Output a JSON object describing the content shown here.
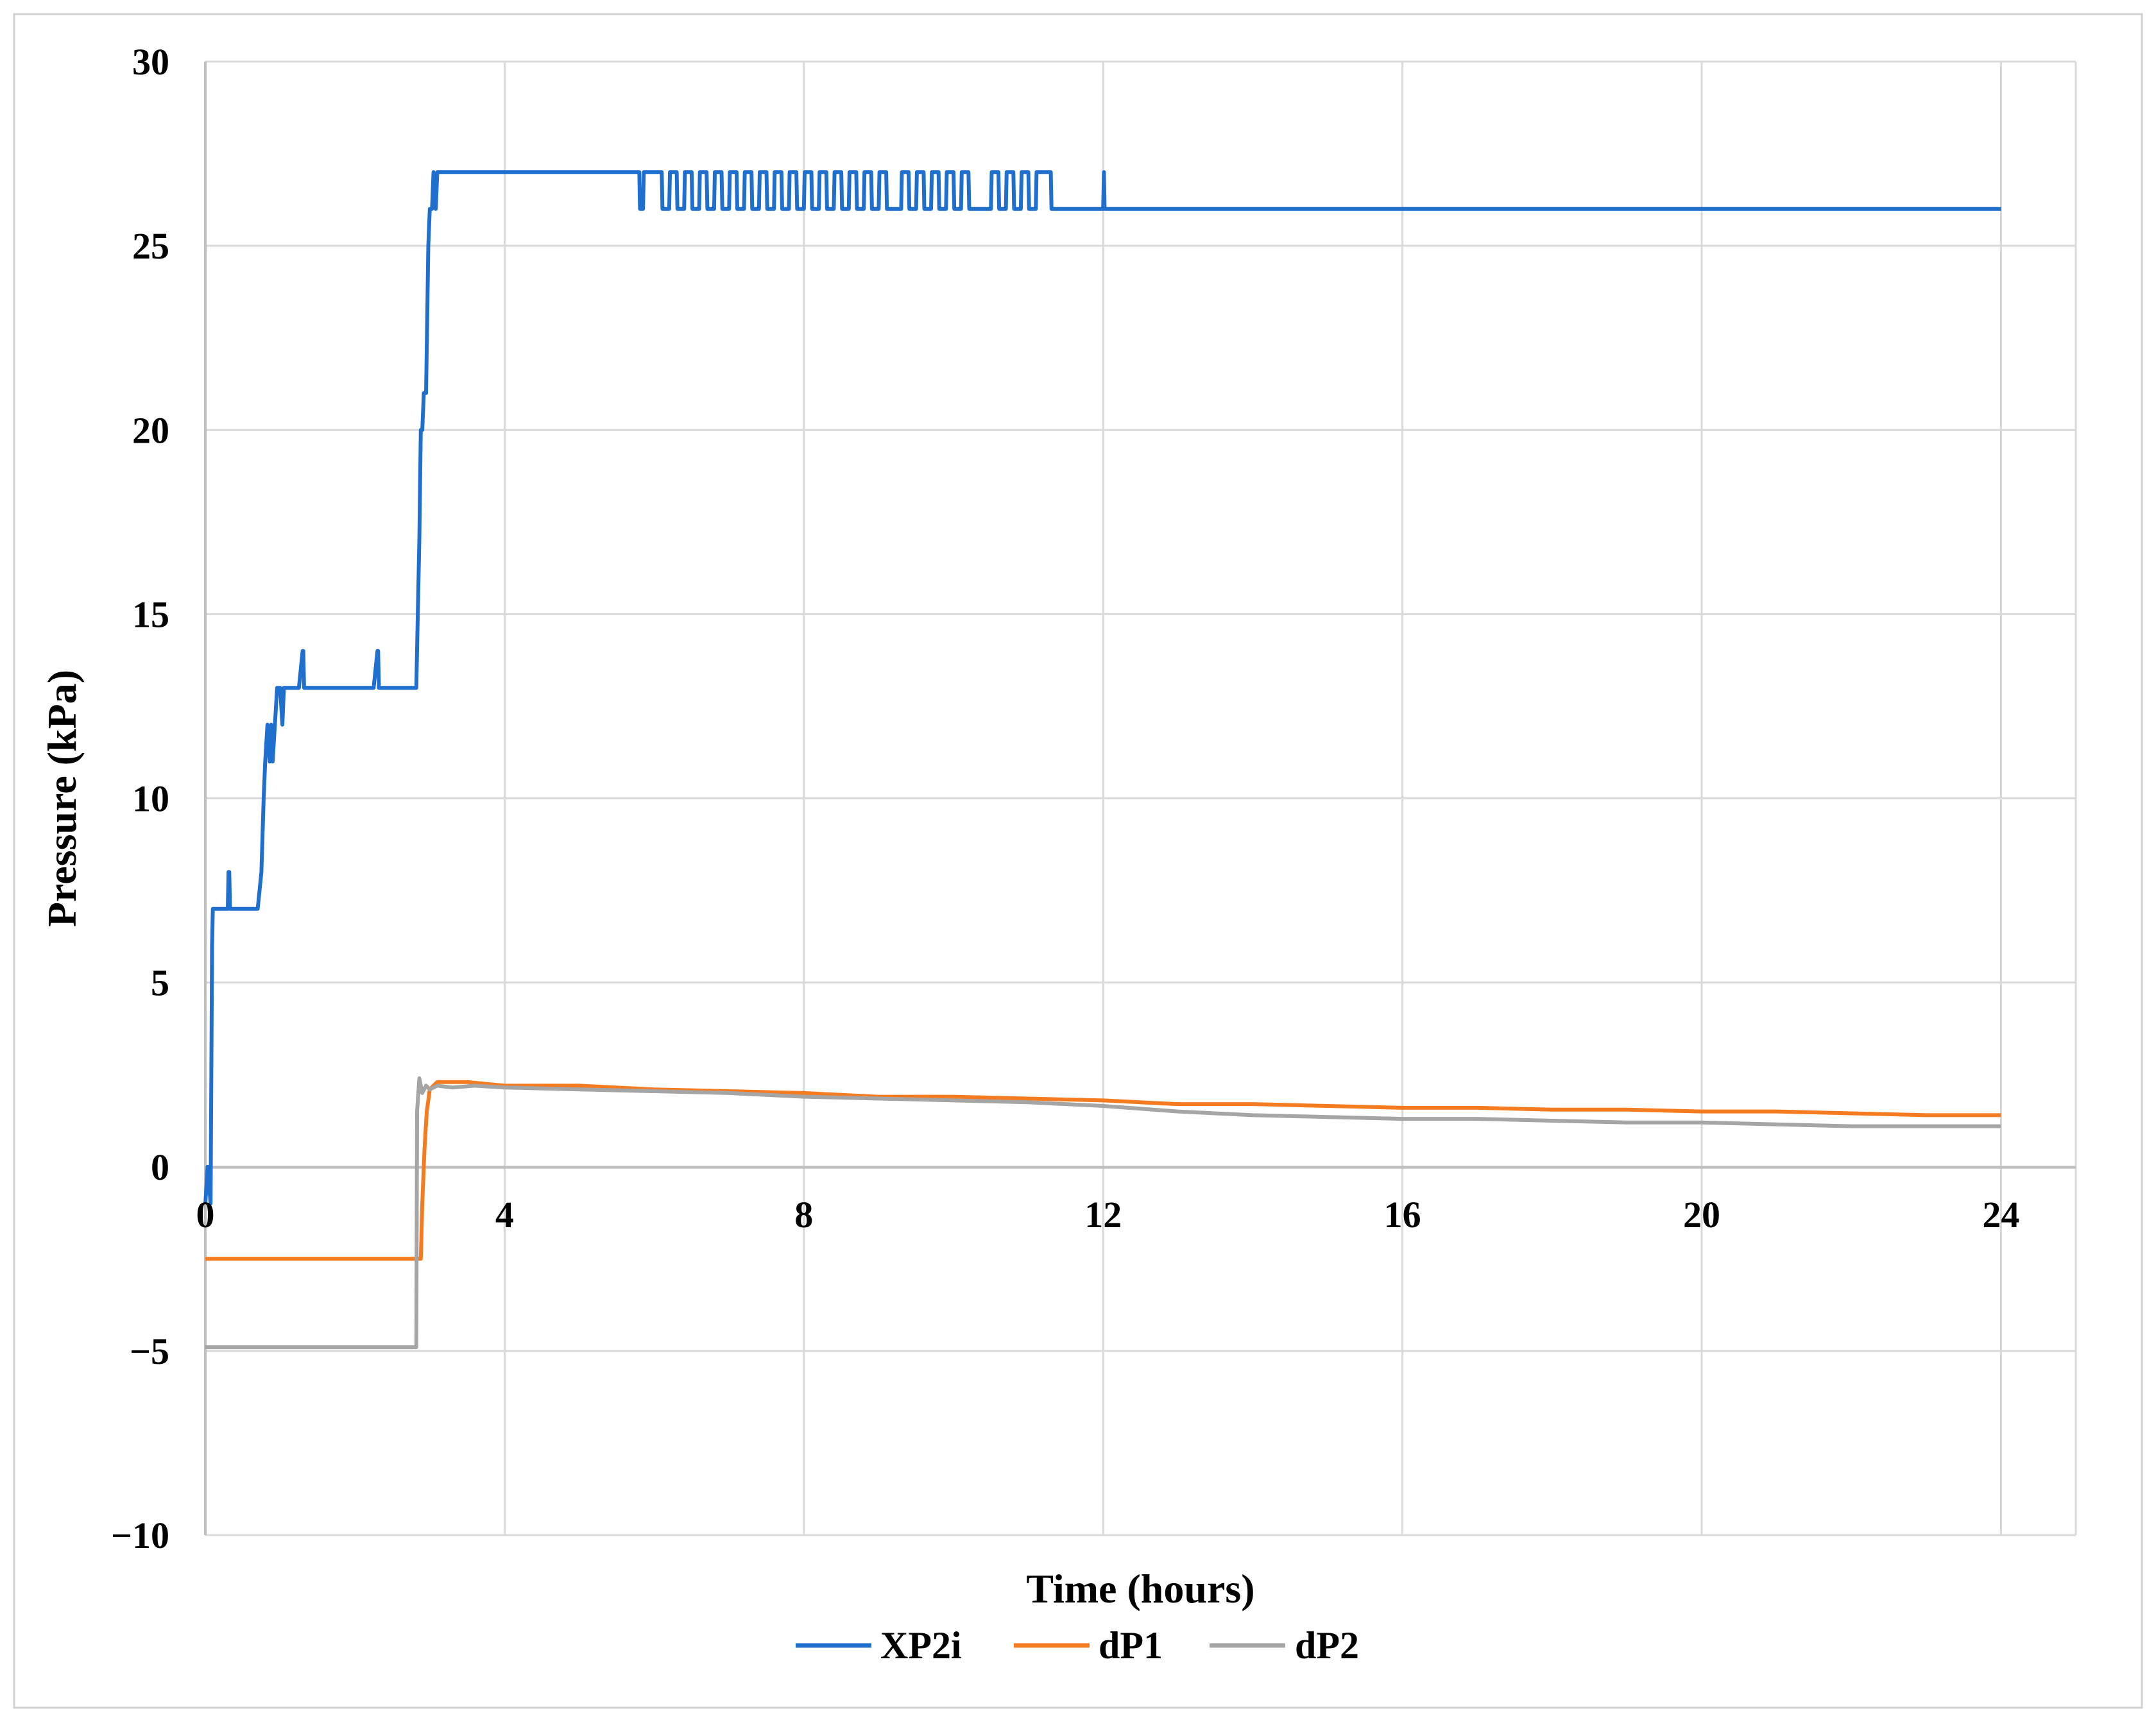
{
  "chart_data": {
    "type": "line",
    "title": "",
    "xlabel": "Time (hours)",
    "ylabel": "Pressure (kPa)",
    "xlim": [
      0,
      25
    ],
    "ylim": [
      -10,
      30
    ],
    "x_ticks": [
      0,
      4,
      8,
      12,
      16,
      20,
      24
    ],
    "y_ticks": [
      -10,
      -5,
      0,
      5,
      10,
      15,
      20,
      25,
      30
    ],
    "x_tick_labels": [
      "0",
      "4",
      "8",
      "12",
      "16",
      "20",
      "24"
    ],
    "y_tick_labels": [
      "−10",
      "−5",
      "0",
      "5",
      "10",
      "15",
      "20",
      "25",
      "30"
    ],
    "grid": true,
    "legend_position": "bottom",
    "series": [
      {
        "name": "XP2i",
        "color": "#1f6fce",
        "x": [
          0,
          0.03,
          0.07,
          0.09,
          0.1,
          0.12,
          0.3,
          0.31,
          0.32,
          0.33,
          0.7,
          0.75,
          0.78,
          0.8,
          0.83,
          0.86,
          0.88,
          0.9,
          0.93,
          0.96,
          1.0,
          1.03,
          1.05,
          1.07,
          1.1,
          1.25,
          1.3,
          1.31,
          1.32,
          2.25,
          2.3,
          2.31,
          2.32,
          2.82,
          2.84,
          2.86,
          2.88,
          2.9,
          2.92,
          2.95,
          2.98,
          3.0,
          3.03,
          3.05,
          3.08,
          3.1,
          3.5,
          5.8,
          5.81,
          5.85,
          5.86,
          6.1,
          6.11,
          6.2,
          6.21,
          6.3,
          6.31,
          6.4,
          6.41,
          6.5,
          6.51,
          6.6,
          6.61,
          6.7,
          6.71,
          6.8,
          6.81,
          6.9,
          6.91,
          7.0,
          7.01,
          7.1,
          7.11,
          7.2,
          7.21,
          7.3,
          7.31,
          7.4,
          7.41,
          7.5,
          7.51,
          7.6,
          7.61,
          7.7,
          7.71,
          7.8,
          7.81,
          7.9,
          7.91,
          8.0,
          8.01,
          8.1,
          8.11,
          8.2,
          8.21,
          8.3,
          8.31,
          8.4,
          8.41,
          8.5,
          8.51,
          8.6,
          8.61,
          8.7,
          8.71,
          8.8,
          8.81,
          8.9,
          8.91,
          9.0,
          9.01,
          9.1,
          9.11,
          9.3,
          9.31,
          9.4,
          9.41,
          9.5,
          9.51,
          9.6,
          9.61,
          9.7,
          9.71,
          9.8,
          9.81,
          9.9,
          9.91,
          10.0,
          10.01,
          10.1,
          10.11,
          10.2,
          10.21,
          10.5,
          10.51,
          10.6,
          10.61,
          10.7,
          10.71,
          10.8,
          10.81,
          10.9,
          10.91,
          11.0,
          11.01,
          11.1,
          11.11,
          11.3,
          11.31,
          12.0,
          12.01,
          12.02,
          24.0
        ],
        "values": [
          -1,
          0,
          -1,
          6,
          7,
          7,
          7,
          8,
          8,
          7,
          7,
          8,
          10,
          11,
          12,
          11,
          12,
          11,
          12,
          13,
          13,
          12,
          13,
          13,
          13,
          13,
          14,
          14,
          13,
          13,
          14,
          14,
          13,
          13,
          15,
          17,
          20,
          20,
          21,
          21,
          25,
          26,
          26,
          27,
          26,
          27,
          27,
          27,
          26,
          26,
          27,
          27,
          26,
          26,
          27,
          27,
          26,
          26,
          27,
          27,
          26,
          26,
          27,
          27,
          26,
          26,
          27,
          27,
          26,
          26,
          27,
          27,
          26,
          26,
          27,
          27,
          26,
          26,
          27,
          27,
          26,
          26,
          27,
          27,
          26,
          26,
          27,
          27,
          26,
          26,
          27,
          27,
          26,
          26,
          27,
          27,
          26,
          26,
          27,
          27,
          26,
          26,
          27,
          27,
          26,
          26,
          27,
          27,
          26,
          26,
          27,
          27,
          26,
          26,
          27,
          27,
          26,
          26,
          27,
          27,
          26,
          26,
          27,
          27,
          26,
          26,
          27,
          27,
          26,
          26,
          27,
          27,
          26,
          26,
          27,
          27,
          26,
          26,
          27,
          27,
          26,
          26,
          27,
          27,
          26,
          26,
          27,
          27,
          26,
          26,
          27,
          26,
          26
        ]
      },
      {
        "name": "dP1",
        "color": "#f47b20",
        "x": [
          0,
          2.85,
          2.88,
          2.9,
          2.93,
          2.96,
          3.0,
          3.05,
          3.1,
          3.5,
          4.0,
          5.0,
          6.0,
          7.0,
          8.0,
          9.0,
          10.0,
          11.0,
          12.0,
          12.5,
          13.0,
          14.0,
          15.0,
          16.0,
          17.0,
          18.0,
          19.0,
          20.0,
          21.0,
          22.0,
          23.0,
          24.0
        ],
        "values": [
          -2.5,
          -2.5,
          -2.5,
          -1.0,
          0.5,
          1.5,
          2.1,
          2.2,
          2.3,
          2.3,
          2.2,
          2.2,
          2.1,
          2.05,
          2.0,
          1.9,
          1.9,
          1.85,
          1.8,
          1.75,
          1.7,
          1.7,
          1.65,
          1.6,
          1.6,
          1.55,
          1.55,
          1.5,
          1.5,
          1.45,
          1.4,
          1.4
        ]
      },
      {
        "name": "dP2",
        "color": "#a5a5a5",
        "x": [
          0,
          2.82,
          2.83,
          2.86,
          2.9,
          2.95,
          3.0,
          3.1,
          3.3,
          3.6,
          4.0,
          5.0,
          6.0,
          7.0,
          8.0,
          9.0,
          10.0,
          11.0,
          12.0,
          13.0,
          14.0,
          15.0,
          16.0,
          17.0,
          18.0,
          19.0,
          20.0,
          21.0,
          22.0,
          23.0,
          24.0
        ],
        "values": [
          -4.9,
          -4.9,
          1.5,
          2.4,
          2.0,
          2.2,
          2.1,
          2.2,
          2.15,
          2.2,
          2.15,
          2.1,
          2.05,
          2.0,
          1.9,
          1.85,
          1.8,
          1.75,
          1.65,
          1.5,
          1.4,
          1.35,
          1.3,
          1.3,
          1.25,
          1.2,
          1.2,
          1.15,
          1.1,
          1.1,
          1.1
        ]
      }
    ]
  }
}
